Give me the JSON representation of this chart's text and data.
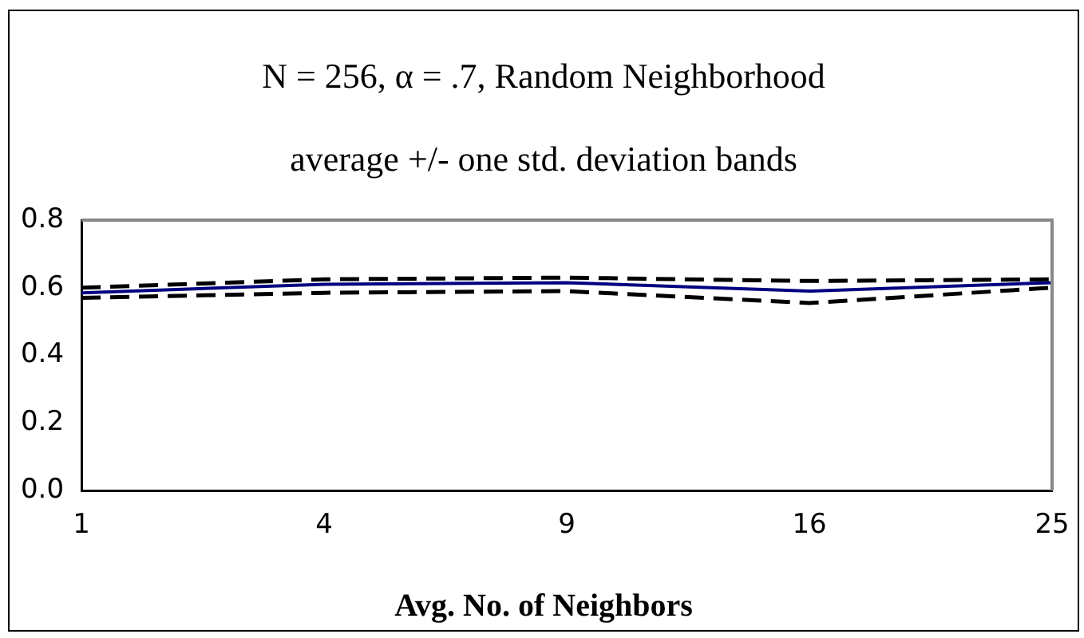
{
  "chart_data": {
    "type": "line",
    "title": "N = 256, α = .7, Random Neighborhood",
    "subtitle": "average +/- one std. deviation bands",
    "xlabel": "Avg. No. of Neighbors",
    "categories": [
      "1",
      "4",
      "9",
      "16",
      "25"
    ],
    "series": [
      {
        "color": "#000000",
        "line_style": "dashed",
        "values": [
          0.6,
          0.625,
          0.63,
          0.62,
          0.625
        ]
      },
      {
        "color": "#000080",
        "line_style": "solid",
        "values": [
          0.585,
          0.61,
          0.615,
          0.59,
          0.615
        ]
      },
      {
        "color": "#000000",
        "line_style": "dashed",
        "values": [
          0.57,
          0.585,
          0.59,
          0.555,
          0.6
        ]
      }
    ],
    "ylim": [
      0,
      0.8
    ],
    "yticks": [
      {
        "value": 0,
        "label": "0.0"
      },
      {
        "value": 0.2,
        "label": "0.2"
      },
      {
        "value": 0.4,
        "label": "0.4"
      },
      {
        "value": 0.6,
        "label": "0.6"
      },
      {
        "value": 0.8,
        "label": "0.8"
      }
    ],
    "grid": false,
    "legend": false,
    "marker": "none"
  }
}
